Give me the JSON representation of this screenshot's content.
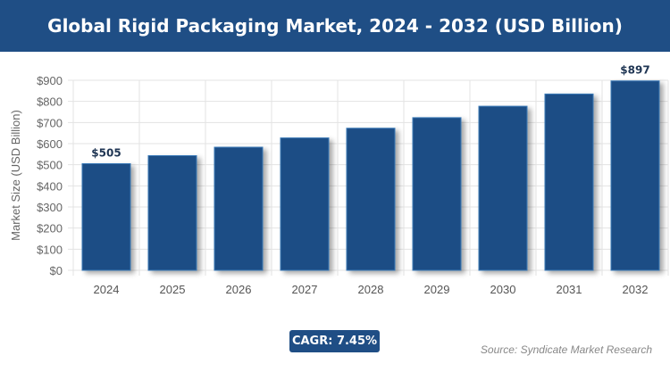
{
  "header": {
    "title": "Global Rigid Packaging Market, 2024 - 2032 (USD Billion)"
  },
  "chart_data": {
    "type": "bar",
    "title": "Global Rigid Packaging Market, 2024 - 2032 (USD Billion)",
    "categories": [
      "2024",
      "2025",
      "2026",
      "2027",
      "2028",
      "2029",
      "2030",
      "2031",
      "2032"
    ],
    "values": [
      505,
      543,
      583,
      627,
      673,
      723,
      777,
      835,
      897
    ],
    "data_labels": {
      "0": "$505",
      "8": "$897"
    },
    "xlabel": "",
    "ylabel": "Market Size (USD Billion)",
    "ylim": [
      0,
      900
    ],
    "yticks": [
      "$0",
      "$100",
      "$200",
      "$300",
      "$400",
      "$500",
      "$600",
      "$700",
      "$800",
      "$900"
    ],
    "grid": true,
    "bar_color": "#1f4e85"
  },
  "footer": {
    "cagr": "CAGR: 7.45%",
    "source": "Source: Syndicate Market Research"
  }
}
